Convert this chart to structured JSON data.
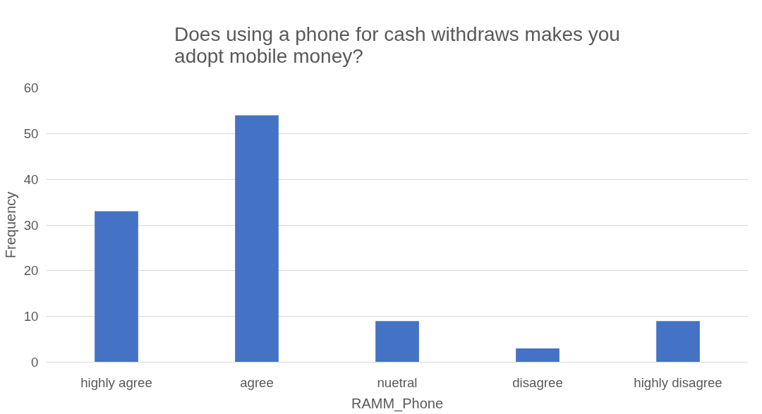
{
  "chart_data": {
    "type": "bar",
    "title": "Does using a phone for cash withdraws makes you adopt mobile money?",
    "xlabel": "RAMM_Phone",
    "ylabel": "Frequency",
    "categories": [
      "highly agree",
      "agree",
      "nuetral",
      "disagree",
      "highly disagree"
    ],
    "values": [
      33,
      54,
      9,
      3,
      9
    ],
    "color": "#4472c4",
    "ylim": [
      0,
      60
    ],
    "yticks": [
      0,
      10,
      20,
      30,
      40,
      50,
      60
    ],
    "grid": "y"
  }
}
